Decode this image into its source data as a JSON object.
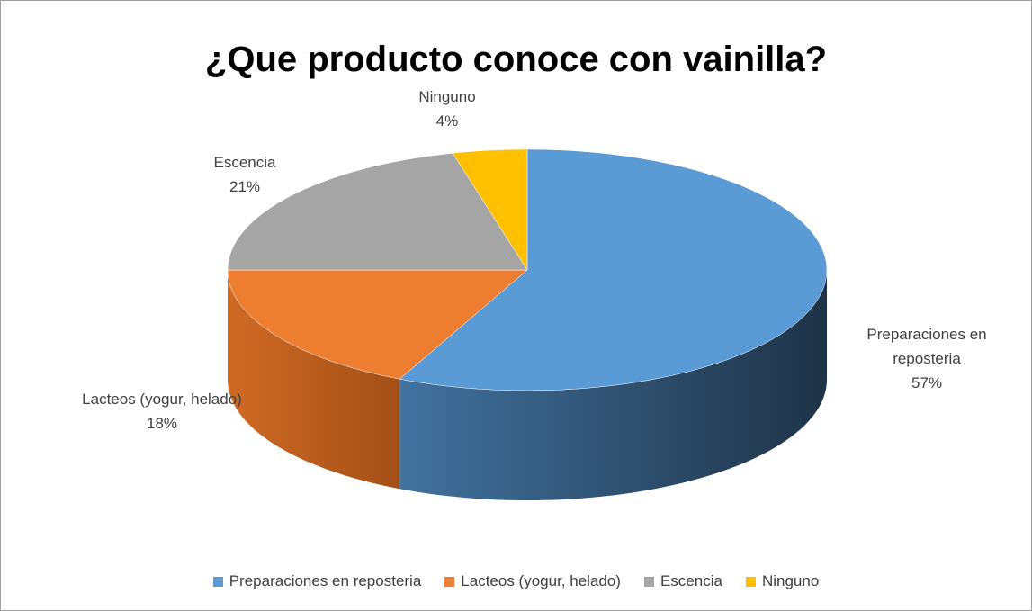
{
  "chart_data": {
    "type": "pie",
    "title": "¿Que producto conoce con vainilla?",
    "categories": [
      "Preparaciones en reposteria",
      "Lacteos (yogur, helado)",
      "Escencia",
      "Ninguno"
    ],
    "values": [
      57,
      18,
      21,
      4
    ],
    "value_labels": [
      "57%",
      "18%",
      "21%",
      "4%"
    ],
    "colors": [
      "#5b9bd5",
      "#ed7d31",
      "#a5a5a5",
      "#ffc000"
    ],
    "legend": "bottom"
  }
}
